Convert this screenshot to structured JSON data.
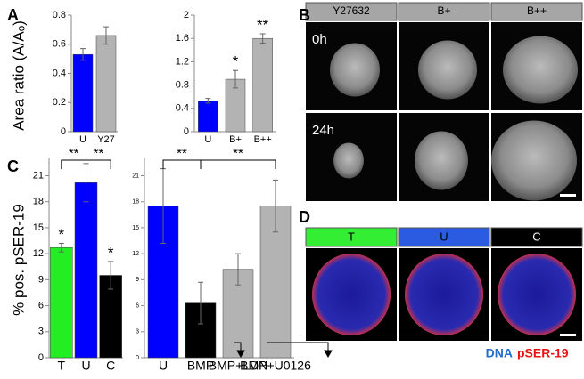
{
  "panel_labels": [
    "A",
    "B",
    "C",
    "D"
  ],
  "chart_data": [
    {
      "type": "bar",
      "ylabel": "Area ratio (A/Aₒ)",
      "categories": [
        "U",
        "Y27"
      ],
      "values": [
        0.53,
        0.66
      ],
      "errors": [
        0.04,
        0.06
      ],
      "colors": [
        "#0000ff",
        "#b3b3b3"
      ],
      "ylim": [
        0,
        0.8
      ],
      "yticks": [
        0,
        0.2,
        0.4,
        0.6,
        0.8
      ],
      "stars": [
        null,
        null
      ]
    },
    {
      "type": "bar",
      "categories": [
        "U",
        "B+",
        "B++"
      ],
      "values": [
        0.53,
        0.9,
        1.6
      ],
      "errors": [
        0.04,
        0.15,
        0.08
      ],
      "colors": [
        "#0000ff",
        "#b3b3b3",
        "#b3b3b3"
      ],
      "ylim": [
        0,
        2
      ],
      "yticks": [
        0,
        0.4,
        0.8,
        1.2,
        1.6,
        2
      ],
      "stars": [
        null,
        "*",
        "**"
      ]
    },
    {
      "type": "bar",
      "ylabel": "% pos. pSER-19",
      "categories": [
        "T",
        "U",
        "C"
      ],
      "values": [
        12.7,
        20.2,
        9.5
      ],
      "errors": [
        0.5,
        2.2,
        1.6
      ],
      "colors": [
        "#22ee22",
        "#0000ff",
        "#000000"
      ],
      "ylim": [
        0,
        23
      ],
      "yticks": [
        0,
        3,
        6,
        9,
        12,
        15,
        18,
        21
      ],
      "stars": [
        "*",
        null,
        "*"
      ],
      "brackets": [
        "**",
        "**"
      ]
    },
    {
      "type": "bar",
      "categories": [
        "U",
        "BMP",
        "BMP+LDN",
        "BMP+U0126"
      ],
      "values": [
        17.5,
        6.3,
        10.2,
        17.5
      ],
      "errors": [
        4.3,
        2.4,
        1.8,
        3.0
      ],
      "colors": [
        "#0000ff",
        "#000000",
        "#b3b3b3",
        "#b3b3b3"
      ],
      "ylim": [
        0,
        23
      ],
      "yticks": [
        0,
        3,
        6,
        9,
        12,
        15,
        18,
        21
      ],
      "stars": [
        null,
        null,
        null,
        null
      ],
      "brackets": [
        "**",
        "**"
      ]
    }
  ],
  "panel_b": {
    "columns": [
      "Y27632",
      "B+",
      "B++"
    ],
    "rows": [
      "0h",
      "24h"
    ]
  },
  "panel_d": {
    "columns": [
      "T",
      "U",
      "C"
    ],
    "legend": [
      "DNA",
      "pSER-19"
    ]
  }
}
